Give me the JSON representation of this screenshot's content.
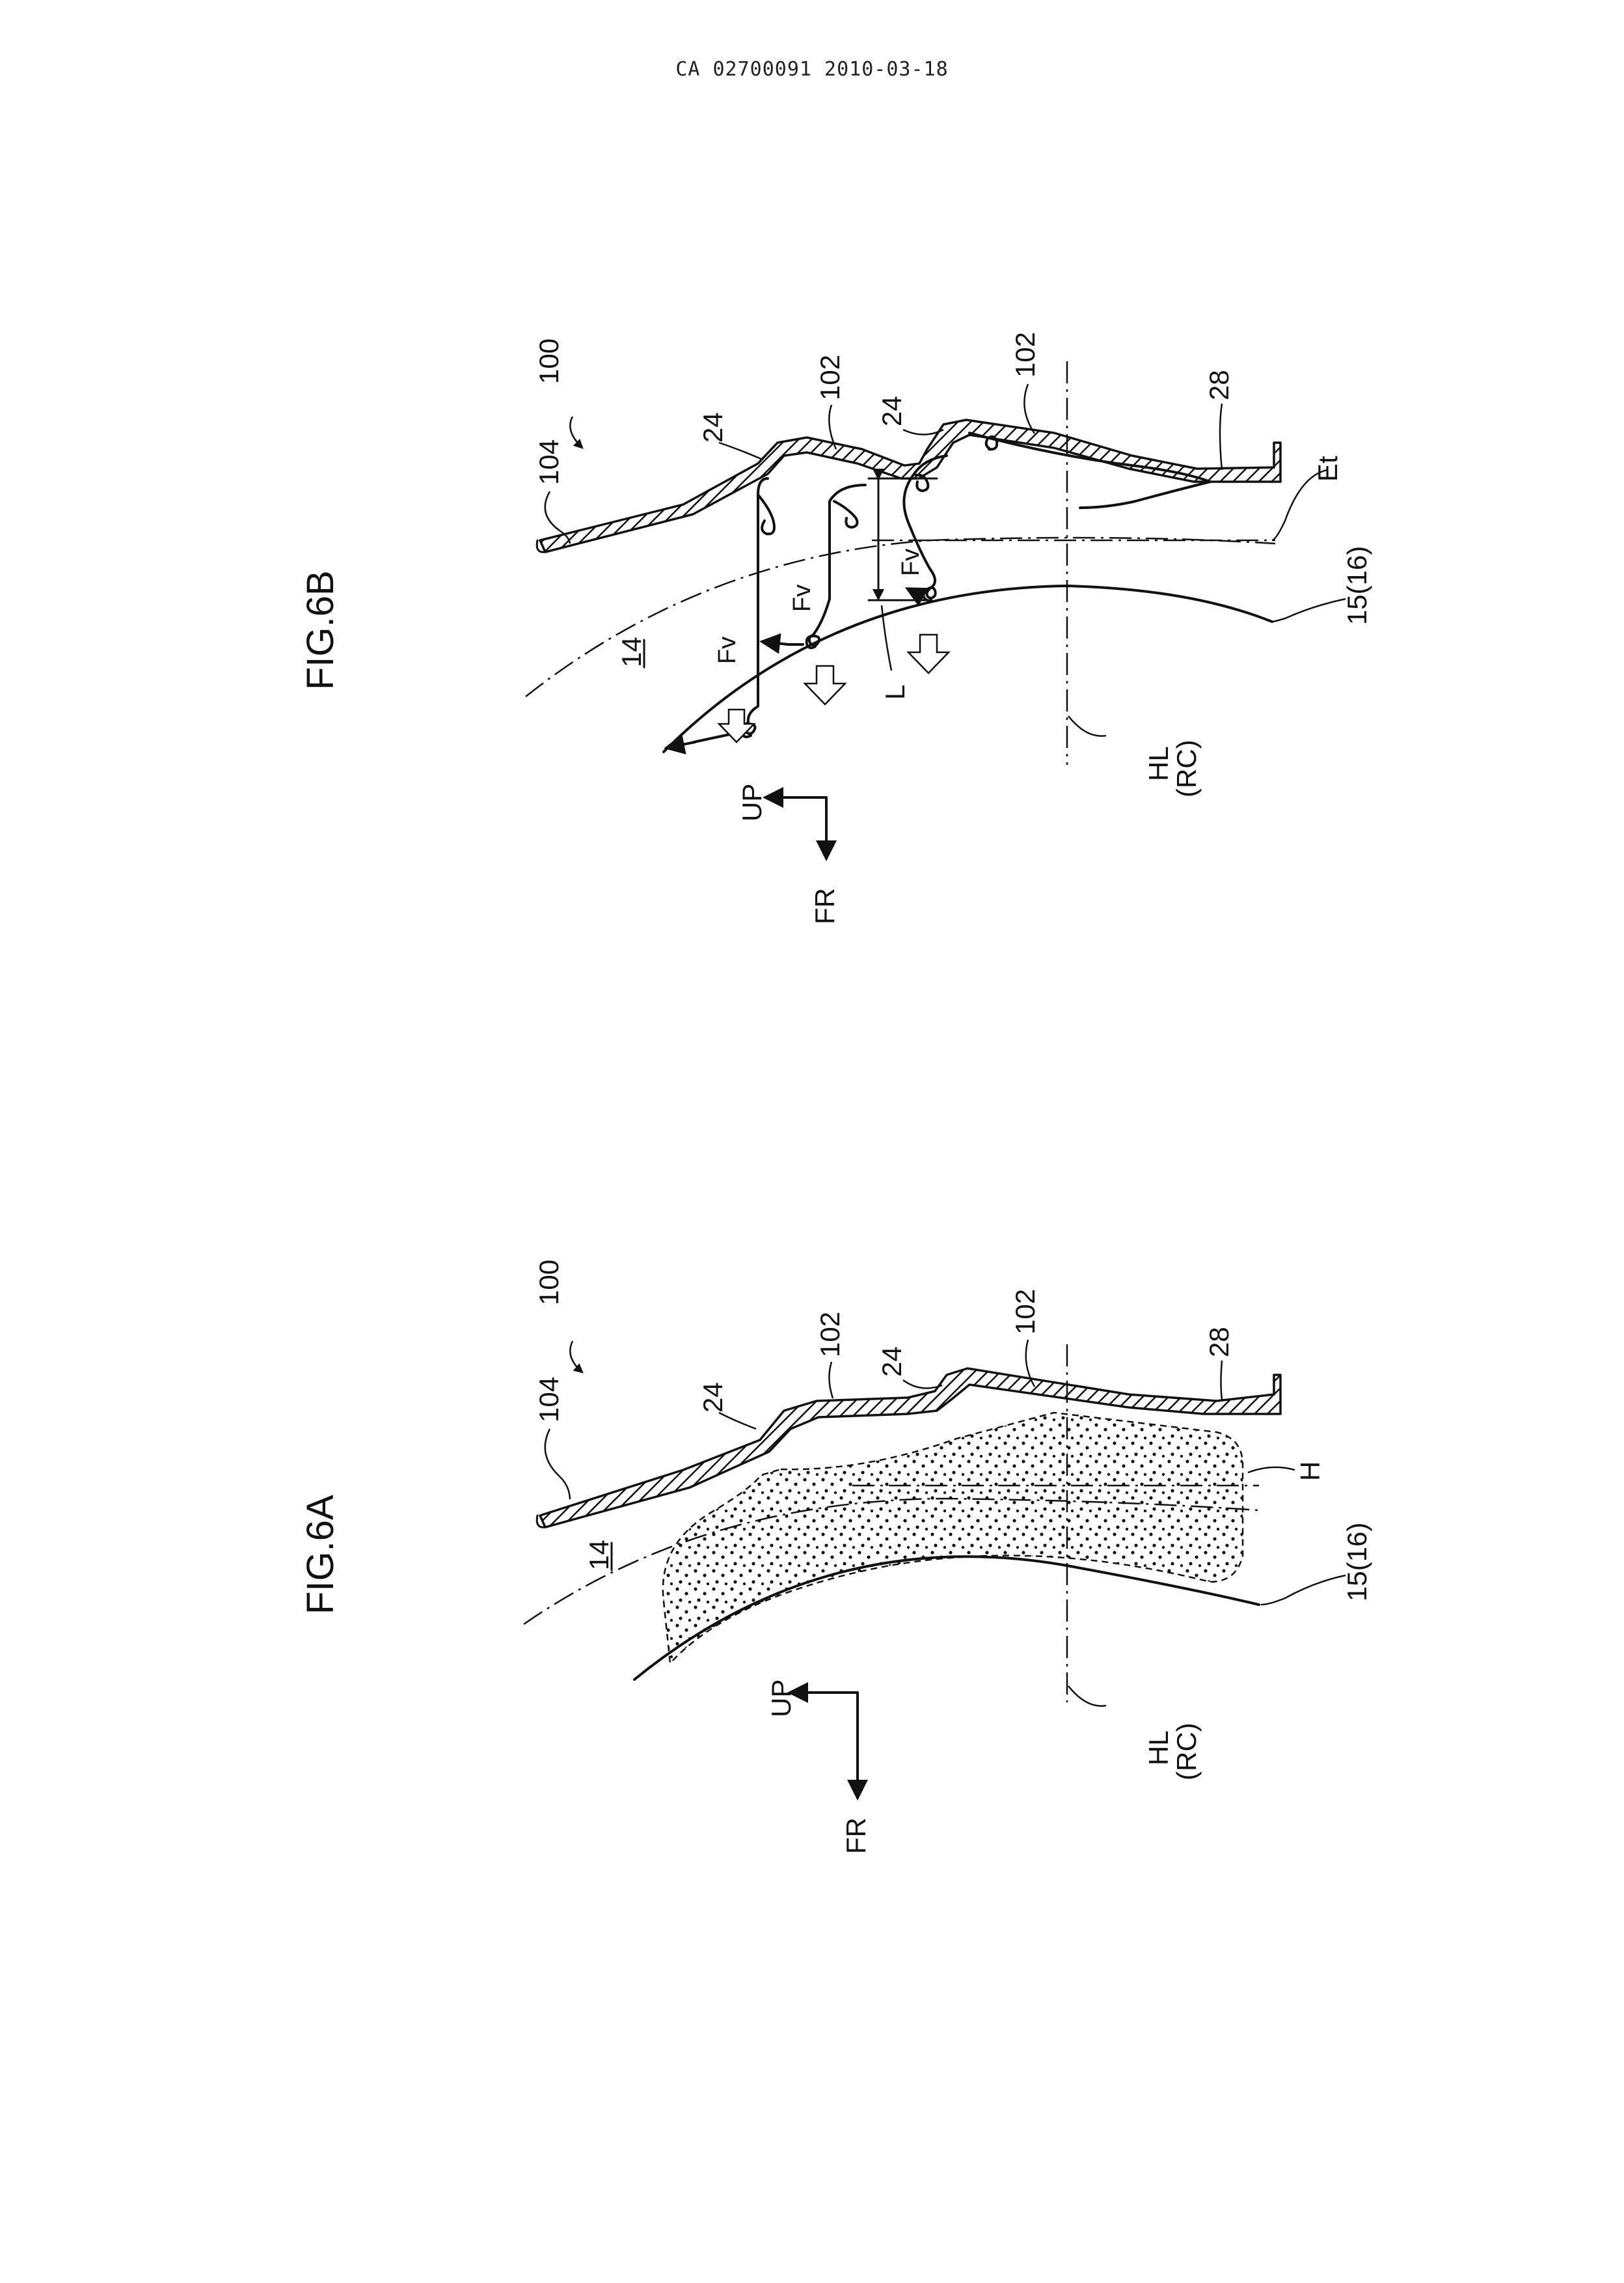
{
  "header": {
    "text": "CA 02700091 2010-03-18"
  },
  "fig_6a": {
    "title": "FIG.6A",
    "labels": {
      "ref_100": "100",
      "ref_104": "104",
      "ref_24": "24",
      "ref_102_left": "102",
      "ref_102_right": "102",
      "ref_28": "28",
      "ref_14": "14",
      "ref_h": "H",
      "ref_15_16": "15(16)",
      "hl": "HL",
      "rc": "(RC)",
      "up": "UP",
      "fr": "FR"
    }
  },
  "fig_6b": {
    "title": "FIG.6B",
    "labels": {
      "ref_100": "100",
      "ref_104": "104",
      "ref_24_left": "24",
      "ref_24_right": "24",
      "ref_102_left": "102",
      "ref_102_right": "102",
      "ref_28": "28",
      "ref_14": "14",
      "ref_et": "Et",
      "ref_15_16": "15(16)",
      "fv_1": "Fv",
      "fv_2": "Fv",
      "fv_3": "Fv",
      "ref_l": "L",
      "hl": "HL",
      "rc": "(RC)",
      "up": "UP",
      "fr": "FR"
    }
  }
}
